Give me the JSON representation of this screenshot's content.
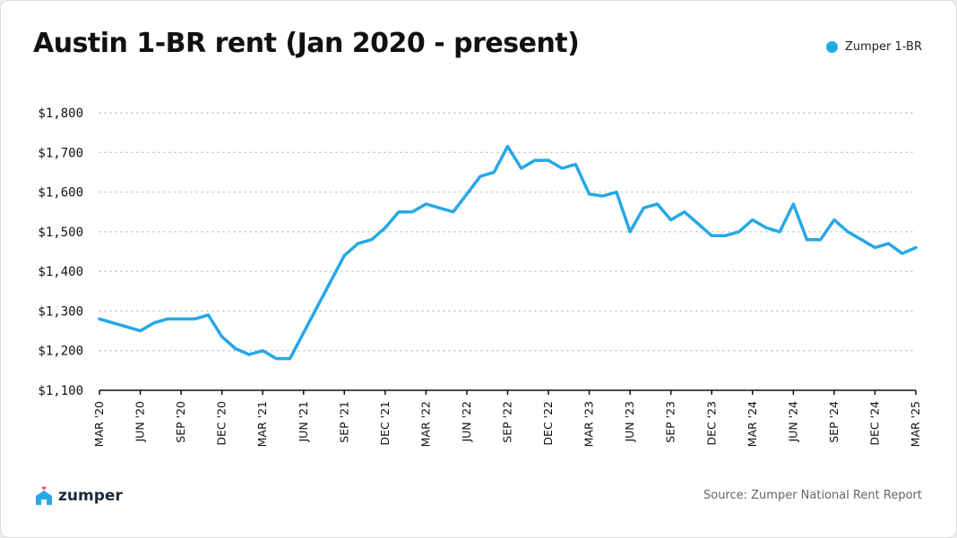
{
  "brand": {
    "name": "zumper",
    "accent_color": "#27a8e6",
    "heart_color": "#ff4f7b"
  },
  "footer": {
    "source": "Source: Zumper National Rent Report"
  },
  "chart_data": {
    "type": "line",
    "title": "Austin 1-BR rent (Jan 2020 - present)",
    "xlabel": "",
    "ylabel": "",
    "ylim": [
      1100,
      1800
    ],
    "y_ticks": [
      1100,
      1200,
      1300,
      1400,
      1500,
      1600,
      1700,
      1800
    ],
    "y_tick_labels": [
      "$1,100",
      "$1,200",
      "$1,300",
      "$1,400",
      "$1,500",
      "$1,600",
      "$1,700",
      "$1,800"
    ],
    "x_tick_labels": [
      "MAR '20",
      "JUN '20",
      "SEP '20",
      "DEC '20",
      "MAR '21",
      "JUN '21",
      "SEP '21",
      "DEC '21",
      "MAR '22",
      "JUN '22",
      "SEP '22",
      "DEC '22",
      "MAR '23",
      "JUN '23",
      "SEP '23",
      "DEC '23",
      "MAR '24",
      "JUN '24",
      "SEP '24",
      "DEC '24",
      "MAR '25"
    ],
    "grid": "horizontal dotted",
    "legend_position": "top-right",
    "x_months": [
      "2020-03",
      "2020-04",
      "2020-05",
      "2020-06",
      "2020-07",
      "2020-08",
      "2020-09",
      "2020-10",
      "2020-11",
      "2020-12",
      "2021-01",
      "2021-02",
      "2021-03",
      "2021-04",
      "2021-05",
      "2021-06",
      "2021-07",
      "2021-08",
      "2021-09",
      "2021-10",
      "2021-11",
      "2021-12",
      "2022-01",
      "2022-02",
      "2022-03",
      "2022-04",
      "2022-05",
      "2022-06",
      "2022-07",
      "2022-08",
      "2022-09",
      "2022-10",
      "2022-11",
      "2022-12",
      "2023-01",
      "2023-02",
      "2023-03",
      "2023-04",
      "2023-05",
      "2023-06",
      "2023-07",
      "2023-08",
      "2023-09",
      "2023-10",
      "2023-11",
      "2023-12",
      "2024-01",
      "2024-02",
      "2024-03",
      "2024-04",
      "2024-05",
      "2024-06",
      "2024-07",
      "2024-08",
      "2024-09",
      "2024-10",
      "2024-11",
      "2024-12",
      "2025-01",
      "2025-02",
      "2025-03"
    ],
    "series": [
      {
        "name": "Zumper 1-BR",
        "color": "#27a8e6",
        "values": [
          1280,
          null,
          null,
          1250,
          1270,
          1280,
          1280,
          1280,
          1290,
          1235,
          1205,
          1190,
          1200,
          1180,
          1180,
          null,
          1310,
          1375,
          1440,
          1470,
          1480,
          1510,
          1550,
          1550,
          1570,
          1560,
          1550,
          1595,
          1640,
          1650,
          1715,
          1660,
          1680,
          1680,
          1660,
          1670,
          1595,
          1590,
          1600,
          1500,
          1560,
          1570,
          1530,
          1550,
          1520,
          1490,
          1490,
          1500,
          1530,
          1510,
          1500,
          1570,
          1480,
          1480,
          1530,
          1500,
          1480,
          1460,
          1470,
          1445,
          1460
        ]
      }
    ]
  }
}
